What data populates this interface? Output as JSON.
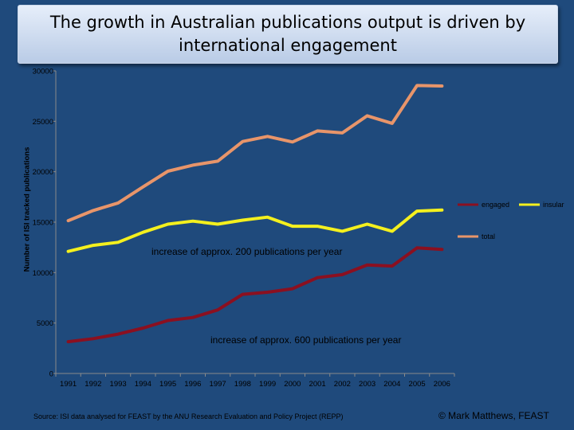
{
  "title": "The growth in Australian publications output is driven by international engagement",
  "footer": {
    "source": "Source: ISI data analysed for FEAST by the ANU Research Evaluation and Policy Project (REPP)",
    "credit": "© Mark Matthews, FEAST"
  },
  "chart_data": {
    "type": "line",
    "xlabel": "",
    "ylabel": "Number of ISI tracked publications",
    "ylim": [
      0,
      30000
    ],
    "yticks": [
      0,
      5000,
      10000,
      15000,
      20000,
      25000,
      30000
    ],
    "x": [
      "1991",
      "1992",
      "1993",
      "1994",
      "1995",
      "1996",
      "1997",
      "1998",
      "1999",
      "2000",
      "2001",
      "2002",
      "2003",
      "2004",
      "2005",
      "2006"
    ],
    "series": [
      {
        "name": "engaged",
        "color": "#8b1020",
        "values": [
          3150,
          3450,
          3900,
          4500,
          5250,
          5550,
          6300,
          7850,
          8050,
          8400,
          9500,
          9800,
          10750,
          10650,
          12450,
          12300
        ]
      },
      {
        "name": "insular",
        "color": "#f4f01e",
        "values": [
          12100,
          12700,
          13000,
          14000,
          14800,
          15100,
          14800,
          15200,
          15500,
          14600,
          14600,
          14100,
          14800,
          14100,
          16100,
          16200
        ]
      },
      {
        "name": "total",
        "color": "#e8956a",
        "values": [
          15150,
          16150,
          16900,
          18500,
          20050,
          20650,
          21050,
          23000,
          23500,
          22950,
          24050,
          23850,
          25550,
          24800,
          28550,
          28500
        ]
      }
    ],
    "annotations": [
      "increase of approx. 200 publications per year",
      "increase of approx. 600 publications per year"
    ],
    "legend": "right",
    "grid": false
  }
}
